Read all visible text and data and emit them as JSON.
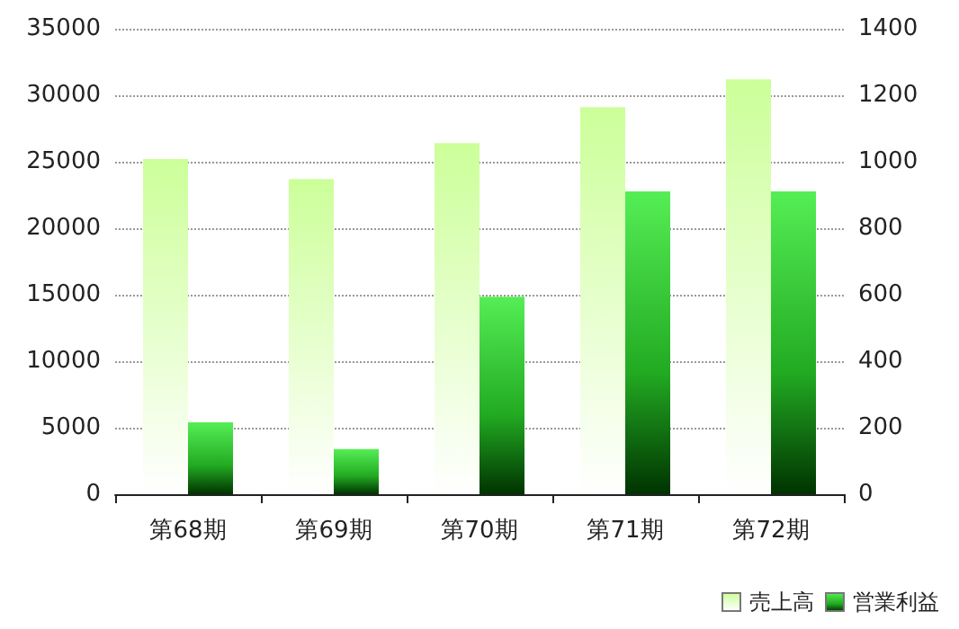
{
  "chart_data": {
    "type": "bar",
    "categories": [
      "第68期",
      "第69期",
      "第70期",
      "第71期",
      "第72期"
    ],
    "series": [
      {
        "name": "売上高",
        "color": "#ccff99",
        "values": [
          25200,
          23700,
          26400,
          29100,
          31200
        ]
      },
      {
        "name": "営業利益",
        "color": "#55ee55",
        "axis": "y2",
        "values": [
          216,
          136,
          594,
          911,
          911
        ]
      }
    ],
    "ylim": [
      0,
      35000
    ],
    "yticks": [
      0,
      5000,
      10000,
      15000,
      20000,
      25000,
      30000,
      35000
    ],
    "y2lim": [
      0,
      1400
    ],
    "y2ticks": [
      0,
      200,
      400,
      600,
      800,
      1000,
      1200,
      1400
    ],
    "grid": "y",
    "legend": "bottom right"
  }
}
